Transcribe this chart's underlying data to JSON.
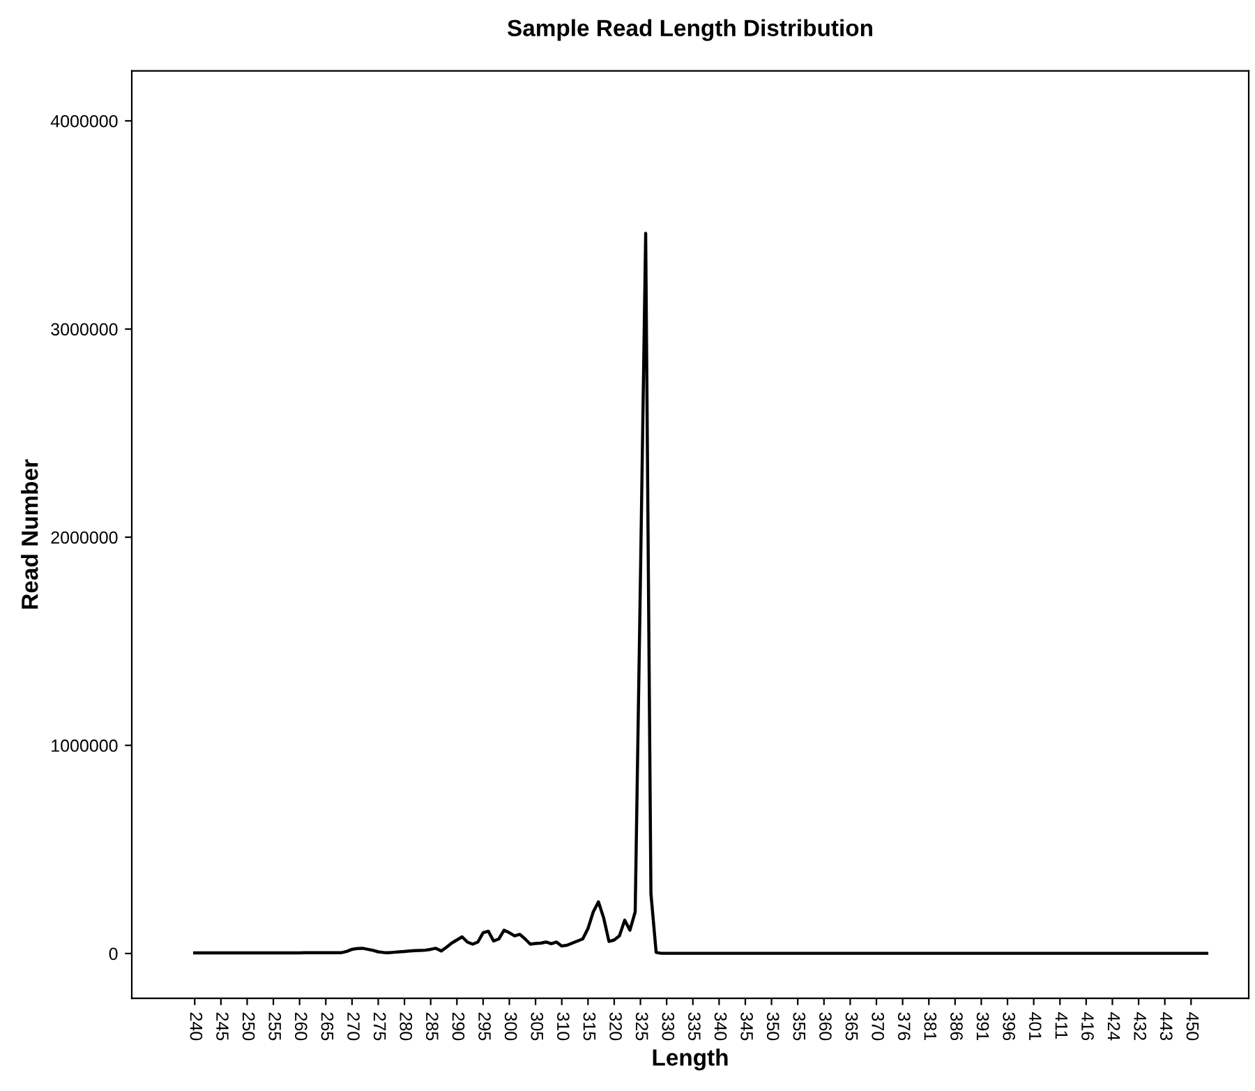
{
  "chart_data": {
    "type": "line",
    "title": "Sample Read Length Distribution",
    "xlabel": "Length",
    "ylabel": "Read Number",
    "categories": [
      "240",
      null,
      null,
      null,
      null,
      "245",
      null,
      null,
      null,
      null,
      "250",
      null,
      null,
      null,
      null,
      "255",
      null,
      null,
      null,
      null,
      "260",
      null,
      null,
      null,
      null,
      "265",
      null,
      null,
      null,
      null,
      "270",
      null,
      null,
      null,
      null,
      "275",
      null,
      null,
      null,
      null,
      "280",
      null,
      null,
      null,
      null,
      "285",
      null,
      null,
      null,
      null,
      "290",
      null,
      null,
      null,
      null,
      "295",
      null,
      null,
      null,
      null,
      "300",
      null,
      null,
      null,
      null,
      "305",
      null,
      null,
      null,
      null,
      "310",
      null,
      null,
      null,
      null,
      "315",
      null,
      null,
      null,
      null,
      "320",
      null,
      null,
      null,
      null,
      "325",
      null,
      null,
      null,
      null,
      "330",
      null,
      null,
      null,
      null,
      "335",
      null,
      null,
      null,
      null,
      "340",
      null,
      null,
      null,
      null,
      "345",
      null,
      null,
      null,
      null,
      "350",
      null,
      null,
      null,
      null,
      "355",
      null,
      null,
      null,
      null,
      "360",
      null,
      null,
      null,
      null,
      "365",
      null,
      null,
      null,
      null,
      "370",
      null,
      null,
      null,
      null,
      "376",
      null,
      null,
      null,
      null,
      "381",
      null,
      null,
      null,
      null,
      "386",
      null,
      null,
      null,
      null,
      "391",
      null,
      null,
      null,
      null,
      "396",
      null,
      null,
      null,
      null,
      "401",
      null,
      null,
      null,
      null,
      "411",
      null,
      null,
      null,
      null,
      "416",
      null,
      null,
      null,
      null,
      "424",
      null,
      null,
      null,
      null,
      "432",
      null,
      null,
      null,
      null,
      "443",
      null,
      null,
      null,
      null,
      "450",
      null,
      null,
      null
    ],
    "series": [
      {
        "color": "#000000",
        "values": [
          3000,
          3000,
          3000,
          3000,
          3000,
          3000,
          3000,
          3000,
          3000,
          3000,
          3000,
          3000,
          3000,
          3000,
          3000,
          3000,
          3000,
          3000,
          3000,
          3000,
          3000,
          4000,
          4000,
          4000,
          4000,
          4000,
          4000,
          4000,
          4000,
          10000,
          20000,
          24000,
          25000,
          20000,
          15000,
          8000,
          5000,
          4000,
          6000,
          8000,
          10000,
          12000,
          14000,
          15000,
          16000,
          20000,
          25000,
          12000,
          30000,
          50000,
          65000,
          80000,
          55000,
          45000,
          55000,
          100000,
          107000,
          60000,
          70000,
          112000,
          100000,
          85000,
          92000,
          70000,
          45000,
          48000,
          50000,
          55000,
          47000,
          55000,
          36000,
          40000,
          50000,
          60000,
          70000,
          120000,
          200000,
          248000,
          170000,
          58000,
          65000,
          85000,
          160000,
          112000,
          200000,
          1800000,
          3460000,
          288000,
          5000,
          1000,
          1000,
          1000,
          1000,
          1000,
          1000,
          1000,
          1000,
          1000,
          1000,
          1000,
          1000,
          1000,
          1000,
          1000,
          1000,
          1000,
          1000,
          1000,
          1000,
          1000,
          1000,
          1000,
          1000,
          1000,
          1000,
          1000,
          1000,
          1000,
          1000,
          1000,
          1000,
          1000,
          1000,
          1000,
          1000,
          1000,
          1000,
          1000,
          1000,
          1000,
          1000,
          1000,
          1000,
          1000,
          1000,
          1000,
          1000,
          1000,
          1000,
          1000,
          1000,
          1000,
          1000,
          1000,
          1000,
          1000,
          1000,
          1000,
          1000,
          1000,
          1000,
          1000,
          1000,
          1000,
          1000,
          1000,
          1000,
          1000,
          1000,
          1000,
          1000,
          1000,
          1000,
          1000,
          1000,
          1000,
          1000,
          1000,
          1000,
          1000,
          1000,
          1000,
          1000,
          1000,
          1000,
          1000,
          1000,
          1000,
          1000,
          1000,
          1000,
          1000,
          1000,
          1000,
          1000,
          1000,
          1000,
          1000,
          1000,
          1000,
          1000,
          1000,
          1000,
          1000
        ]
      }
    ],
    "ylim": [
      -215000,
      4240000
    ],
    "yticks": [
      0,
      1000000,
      2000000,
      3000000,
      4000000
    ],
    "grid": false,
    "legend": false,
    "marker": "none",
    "line_style": "solid"
  }
}
